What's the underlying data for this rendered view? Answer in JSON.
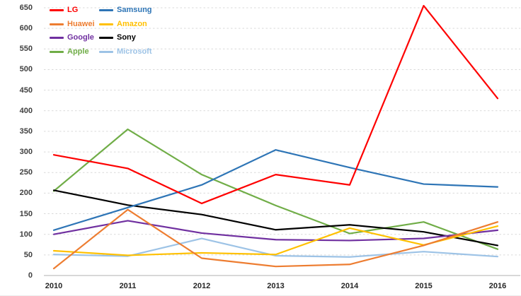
{
  "chart_data": {
    "type": "line",
    "title": "",
    "xlabel": "",
    "ylabel": "",
    "x_categories": [
      "2010",
      "2011",
      "2012",
      "2013",
      "2014",
      "2015",
      "2016"
    ],
    "y_ticks": [
      0,
      50,
      100,
      150,
      200,
      250,
      300,
      350,
      400,
      450,
      500,
      550,
      600,
      650
    ],
    "ylim": [
      0,
      650
    ],
    "grid": "horizontal-dashed",
    "legend_position": "top-left-two-columns",
    "series": [
      {
        "name": "LG",
        "color": "#fe0000",
        "values": [
          293,
          260,
          175,
          245,
          220,
          655,
          430
        ]
      },
      {
        "name": "Samsung",
        "color": "#2e75b6",
        "values": [
          110,
          165,
          220,
          305,
          262,
          222,
          215
        ]
      },
      {
        "name": "Huawei",
        "color": "#ed7d31",
        "values": [
          17,
          160,
          42,
          22,
          27,
          73,
          130
        ]
      },
      {
        "name": "Amazon",
        "color": "#ffc000",
        "values": [
          60,
          49,
          55,
          51,
          115,
          74,
          120
        ]
      },
      {
        "name": "Google",
        "color": "#7030a0",
        "values": [
          100,
          133,
          103,
          87,
          85,
          90,
          110
        ]
      },
      {
        "name": "Sony",
        "color": "#000000",
        "values": [
          207,
          171,
          148,
          111,
          123,
          106,
          73
        ]
      },
      {
        "name": "Apple",
        "color": "#70ad47",
        "values": [
          205,
          355,
          245,
          170,
          102,
          130,
          64
        ]
      },
      {
        "name": "Microsoft",
        "color": "#9dc3e6",
        "values": [
          51,
          47,
          90,
          48,
          45,
          58,
          46
        ]
      }
    ],
    "colors": {
      "gridline": "#d9d9d9",
      "zero_axis_line": "#c0c0c0",
      "y_tick_text": "#404040",
      "x_tick_text": "#262626",
      "background": "#ffffff"
    }
  }
}
